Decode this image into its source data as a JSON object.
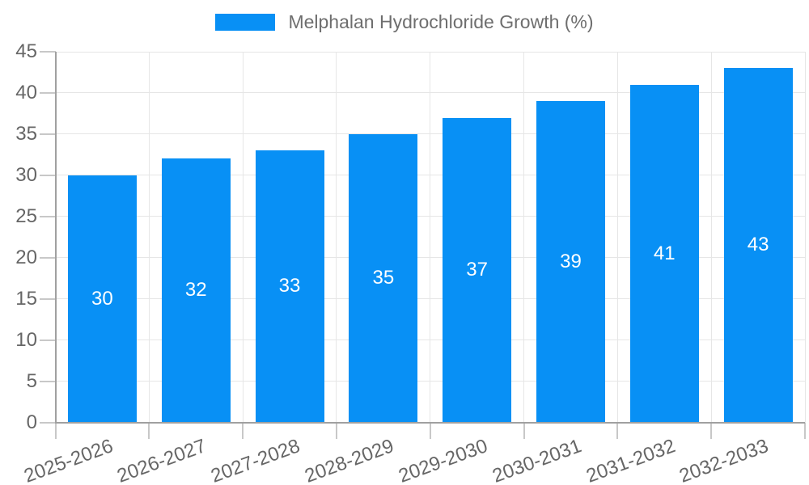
{
  "chart_data": {
    "type": "bar",
    "title": "Melphalan Hydrochloride Growth (%)",
    "legend": {
      "label": "Melphalan Hydrochloride Growth (%)",
      "position": "top"
    },
    "categories": [
      "2025-2026",
      "2026-2027",
      "2027-2028",
      "2028-2029",
      "2029-2030",
      "2030-2031",
      "2031-2032",
      "2032-2033"
    ],
    "values": [
      30,
      32,
      33,
      35,
      37,
      39,
      41,
      43
    ],
    "xlabel": "",
    "ylabel": "",
    "ylim": [
      0,
      45
    ],
    "ytick_step": 5,
    "grid": true,
    "value_labels": "inside-center",
    "colors": {
      "bar": "#0890f5",
      "value_label": "#ffffff",
      "axis_label": "#666666",
      "legend_text": "#6e6e6e",
      "grid": "#e6e6e6",
      "axis_line": "#a0a0a0",
      "tick": "#c8c8c8",
      "background": "#ffffff"
    }
  }
}
